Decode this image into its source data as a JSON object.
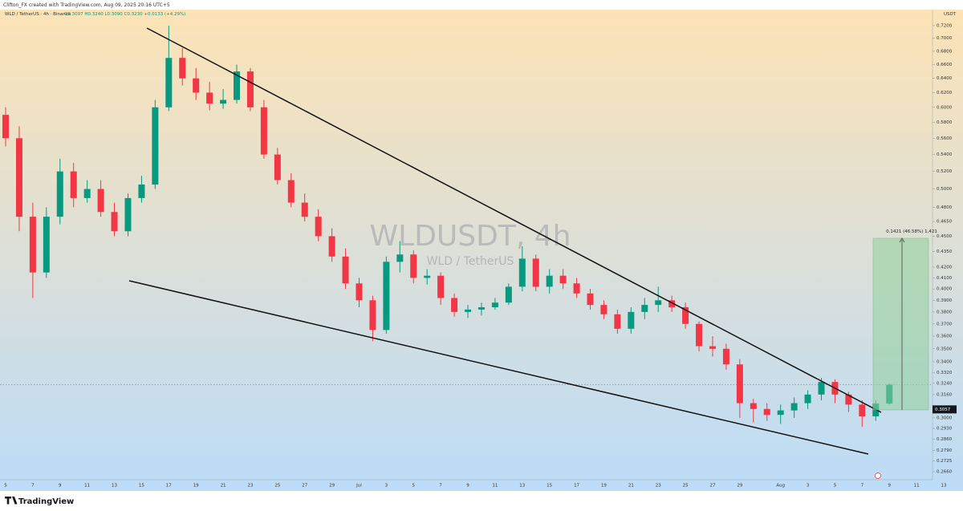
{
  "header": {
    "credit": "Clifton_FX created with TradingView.com, Aug 09, 2025 20:16 UTC+5",
    "symbol": "WLD / TetherUS · 4h · Binance",
    "ohlc": "O0.3097 H0.3240 L0.3090 C0.3230 +0.0133 (+4.29%)",
    "currency": "USDT"
  },
  "watermark": {
    "title": "WLDUSDT, 4h",
    "subtitle": "WLD / TetherUS"
  },
  "position_label": "0.1421 (46.58%) 1,421",
  "footer": {
    "brand": "TradingView"
  },
  "chart_data": {
    "type": "candlestick",
    "log_scale": true,
    "categories": [
      "5",
      null,
      "7",
      null,
      "9",
      null,
      "11",
      null,
      "13",
      null,
      "15",
      null,
      "17",
      null,
      "19",
      null,
      "21",
      null,
      "23",
      null,
      "25",
      null,
      "27",
      null,
      "29",
      null,
      "Jul",
      null,
      "3",
      null,
      "5",
      null,
      "7",
      null,
      "9",
      null,
      "11",
      null,
      "13",
      null,
      "15",
      null,
      "17",
      null,
      "19",
      null,
      "21",
      null,
      "23",
      null,
      "25",
      null,
      "27",
      null,
      "29",
      null,
      null,
      "Aug",
      null,
      "3",
      null,
      "5",
      null,
      "7",
      null,
      "9",
      null,
      "11",
      null,
      "13"
    ],
    "open": [
      0.59,
      0.56,
      0.47,
      0.415,
      0.47,
      0.52,
      0.49,
      0.5,
      0.475,
      0.455,
      0.49,
      0.505,
      0.6,
      0.67,
      0.64,
      0.62,
      0.605,
      0.61,
      0.65,
      0.6,
      0.54,
      0.51,
      0.485,
      0.47,
      0.45,
      0.43,
      0.405,
      0.39,
      0.365,
      0.425,
      0.432,
      0.41,
      0.412,
      0.392,
      0.38,
      0.382,
      0.384,
      0.388,
      0.402,
      0.428,
      0.402,
      0.412,
      0.405,
      0.396,
      0.386,
      0.378,
      0.366,
      0.38,
      0.386,
      0.39,
      0.384,
      0.37,
      0.352,
      0.35,
      0.338,
      0.31,
      0.306,
      0.302,
      0.305,
      0.31,
      0.316,
      0.325,
      0.316,
      0.309,
      0.301,
      0.3097,
      null,
      null,
      null,
      null
    ],
    "high": [
      0.6,
      0.575,
      0.485,
      0.48,
      0.535,
      0.53,
      0.51,
      0.51,
      0.485,
      0.495,
      0.515,
      0.61,
      0.72,
      0.685,
      0.655,
      0.635,
      0.625,
      0.66,
      0.655,
      0.61,
      0.548,
      0.518,
      0.495,
      0.478,
      0.458,
      0.438,
      0.41,
      0.394,
      0.43,
      0.445,
      0.436,
      0.418,
      0.415,
      0.396,
      0.386,
      0.388,
      0.392,
      0.405,
      0.44,
      0.432,
      0.418,
      0.418,
      0.41,
      0.4,
      0.39,
      0.382,
      0.384,
      0.392,
      0.402,
      0.394,
      0.388,
      0.372,
      0.36,
      0.354,
      0.342,
      0.313,
      0.31,
      0.309,
      0.314,
      0.319,
      0.328,
      0.327,
      0.318,
      0.312,
      0.312,
      0.324,
      null,
      null,
      null,
      null
    ],
    "low": [
      0.55,
      0.455,
      0.392,
      0.41,
      0.462,
      0.48,
      0.485,
      0.47,
      0.45,
      0.45,
      0.485,
      0.5,
      0.595,
      0.63,
      0.61,
      0.596,
      0.598,
      0.605,
      0.595,
      0.535,
      0.505,
      0.48,
      0.465,
      0.445,
      0.425,
      0.4,
      0.384,
      0.356,
      0.362,
      0.415,
      0.405,
      0.404,
      0.386,
      0.376,
      0.375,
      0.377,
      0.382,
      0.386,
      0.398,
      0.398,
      0.396,
      0.4,
      0.392,
      0.382,
      0.374,
      0.362,
      0.362,
      0.374,
      0.38,
      0.38,
      0.366,
      0.348,
      0.344,
      0.334,
      0.3,
      0.297,
      0.298,
      0.296,
      0.3,
      0.306,
      0.312,
      0.31,
      0.304,
      0.294,
      0.298,
      0.309,
      null,
      null,
      null,
      null
    ],
    "close": [
      0.56,
      0.47,
      0.415,
      0.47,
      0.52,
      0.49,
      0.5,
      0.475,
      0.455,
      0.49,
      0.505,
      0.6,
      0.67,
      0.64,
      0.62,
      0.605,
      0.61,
      0.65,
      0.6,
      0.54,
      0.51,
      0.485,
      0.47,
      0.45,
      0.43,
      0.405,
      0.39,
      0.365,
      0.425,
      0.432,
      0.41,
      0.412,
      0.392,
      0.38,
      0.382,
      0.384,
      0.388,
      0.402,
      0.428,
      0.402,
      0.412,
      0.405,
      0.396,
      0.386,
      0.378,
      0.366,
      0.38,
      0.386,
      0.39,
      0.384,
      0.37,
      0.352,
      0.35,
      0.338,
      0.31,
      0.306,
      0.302,
      0.305,
      0.31,
      0.316,
      0.325,
      0.316,
      0.309,
      0.301,
      0.3097,
      0.323,
      null,
      null,
      null,
      null
    ],
    "up_color": "#089981",
    "down_color": "#f23645",
    "ylim": [
      0.2613,
      0.7462
    ],
    "yticks": [
      {
        "value": 0.72,
        "label": "0.7200"
      },
      {
        "value": 0.7,
        "label": "0.7000"
      },
      {
        "value": 0.68,
        "label": "0.6800"
      },
      {
        "value": 0.66,
        "label": "0.6600"
      },
      {
        "value": 0.64,
        "label": "0.6400"
      },
      {
        "value": 0.62,
        "label": "0.6200"
      },
      {
        "value": 0.6,
        "label": "0.6000"
      },
      {
        "value": 0.58,
        "label": "0.5800"
      },
      {
        "value": 0.56,
        "label": "0.5600"
      },
      {
        "value": 0.54,
        "label": "0.5400"
      },
      {
        "value": 0.52,
        "label": "0.5200"
      },
      {
        "value": 0.5,
        "label": "0.5000"
      },
      {
        "value": 0.48,
        "label": "0.4800"
      },
      {
        "value": 0.465,
        "label": "0.4650"
      },
      {
        "value": 0.45,
        "label": "0.4500"
      },
      {
        "value": 0.435,
        "label": "0.4350"
      },
      {
        "value": 0.42,
        "label": "0.4200"
      },
      {
        "value": 0.41,
        "label": "0.4100"
      },
      {
        "value": 0.4,
        "label": "0.4000"
      },
      {
        "value": 0.39,
        "label": "0.3900"
      },
      {
        "value": 0.38,
        "label": "0.3800"
      },
      {
        "value": 0.37,
        "label": "0.3700"
      },
      {
        "value": 0.36,
        "label": "0.3600"
      },
      {
        "value": 0.35,
        "label": "0.3500"
      },
      {
        "value": 0.34,
        "label": "0.3400"
      },
      {
        "value": 0.332,
        "label": "0.3320"
      },
      {
        "value": 0.324,
        "label": "0.3240"
      },
      {
        "value": 0.316,
        "label": "0.3160"
      },
      {
        "value": 0.3,
        "label": "0.3000"
      },
      {
        "value": 0.293,
        "label": "0.2930"
      },
      {
        "value": 0.286,
        "label": "0.2860"
      },
      {
        "value": 0.279,
        "label": "0.2790"
      },
      {
        "value": 0.2725,
        "label": "0.2725"
      },
      {
        "value": 0.266,
        "label": "0.2660"
      }
    ],
    "price_tag": {
      "value": 0.3057,
      "label": "0.3057"
    }
  }
}
